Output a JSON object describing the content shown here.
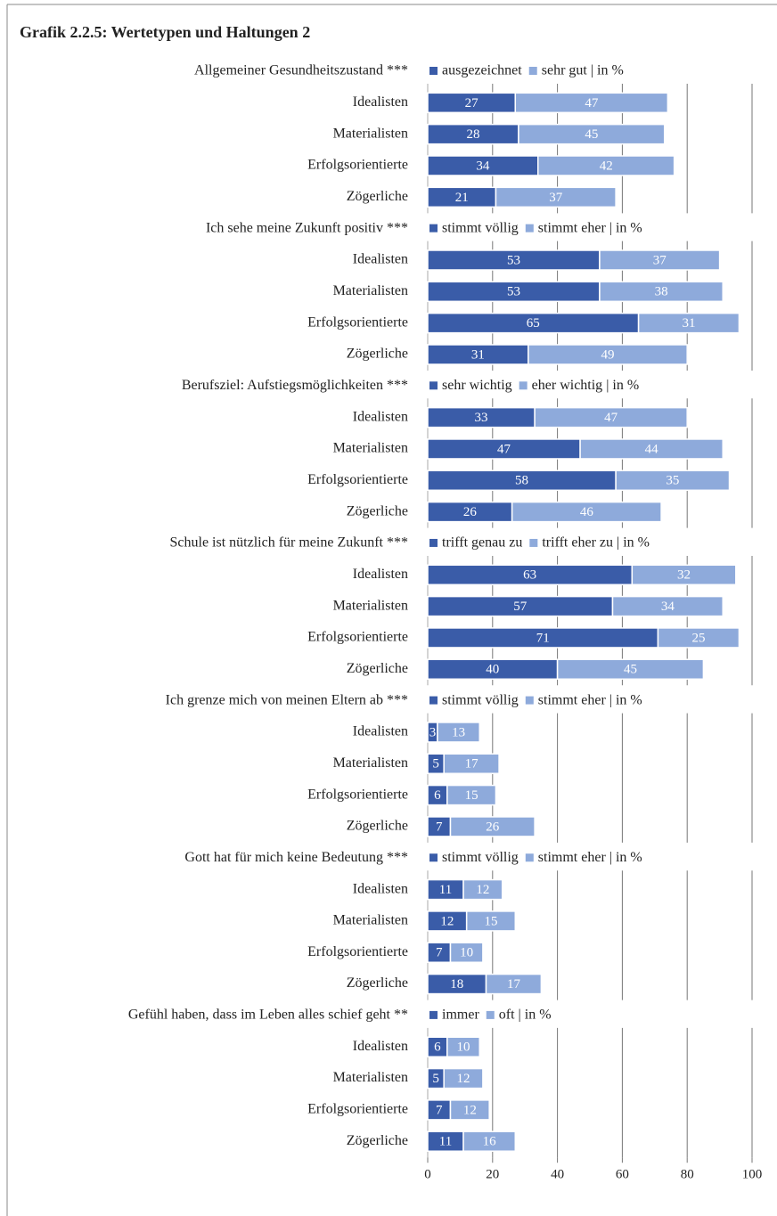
{
  "chart_data": {
    "type": "bar",
    "stacked": true,
    "orientation": "horizontal",
    "title": "Grafik 2.2.5: Wertetypen und Haltungen 2",
    "categories": [
      "Idealisten",
      "Materialisten",
      "Erfolgsorientierte",
      "Zögerliche"
    ],
    "legend_suffix": "| in %",
    "xlim": [
      0,
      100
    ],
    "xticks": [
      0,
      20,
      40,
      60,
      80,
      100
    ],
    "grid": true,
    "groups": [
      {
        "label": "Allgemeiner Gesundheitszustand ***",
        "series": [
          {
            "name": "ausgezeichnet",
            "color": "#3a5ca8",
            "values": [
              27,
              28,
              34,
              21
            ]
          },
          {
            "name": "sehr gut",
            "color": "#8eaadb",
            "values": [
              47,
              45,
              42,
              37
            ]
          }
        ]
      },
      {
        "label": "Ich sehe meine Zukunft positiv ***",
        "series": [
          {
            "name": "stimmt völlig",
            "color": "#3a5ca8",
            "values": [
              53,
              53,
              65,
              31
            ]
          },
          {
            "name": "stimmt eher",
            "color": "#8eaadb",
            "values": [
              37,
              38,
              31,
              49
            ]
          }
        ]
      },
      {
        "label": "Berufsziel: Aufstiegsmöglichkeiten ***",
        "series": [
          {
            "name": "sehr wichtig",
            "color": "#3a5ca8",
            "values": [
              33,
              47,
              58,
              26
            ]
          },
          {
            "name": "eher wichtig",
            "color": "#8eaadb",
            "values": [
              47,
              44,
              35,
              46
            ]
          }
        ]
      },
      {
        "label": "Schule ist nützlich für meine Zukunft ***",
        "series": [
          {
            "name": "trifft genau zu",
            "color": "#3a5ca8",
            "values": [
              63,
              57,
              71,
              40
            ]
          },
          {
            "name": "trifft eher zu",
            "color": "#8eaadb",
            "values": [
              32,
              34,
              25,
              45
            ]
          }
        ]
      },
      {
        "label": "Ich grenze mich von meinen Eltern ab ***",
        "series": [
          {
            "name": "stimmt völlig",
            "color": "#3a5ca8",
            "values": [
              3,
              5,
              6,
              7
            ]
          },
          {
            "name": "stimmt eher",
            "color": "#8eaadb",
            "values": [
              13,
              17,
              15,
              26
            ]
          }
        ]
      },
      {
        "label": "Gott hat für mich keine Bedeutung ***",
        "series": [
          {
            "name": "stimmt völlig",
            "color": "#3a5ca8",
            "values": [
              11,
              12,
              7,
              18
            ]
          },
          {
            "name": "stimmt eher",
            "color": "#8eaadb",
            "values": [
              12,
              15,
              10,
              17
            ]
          }
        ]
      },
      {
        "label": "Gefühl haben, dass im Leben alles schief geht **",
        "series": [
          {
            "name": "immer",
            "color": "#3a5ca8",
            "values": [
              6,
              5,
              7,
              11
            ]
          },
          {
            "name": "oft",
            "color": "#8eaadb",
            "values": [
              10,
              12,
              12,
              16
            ]
          }
        ]
      }
    ]
  }
}
